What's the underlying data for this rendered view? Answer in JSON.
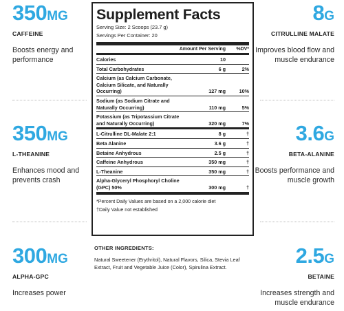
{
  "callouts": {
    "caffeine": {
      "value": "350",
      "unit": "MG",
      "name": "CAFFEINE",
      "desc": "Boosts energy and performance"
    },
    "theanine": {
      "value": "350",
      "unit": "MG",
      "name": "L-THEANINE",
      "desc": "Enhances mood and prevents crash"
    },
    "alphagpc": {
      "value": "300",
      "unit": "MG",
      "name": "ALPHA-GPC",
      "desc": "Increases power"
    },
    "citrulline": {
      "value": "8",
      "unit": "G",
      "name": "CITRULLINE MALATE",
      "desc": "Improves blood flow and muscle endurance"
    },
    "betaalanine": {
      "value": "3.6",
      "unit": "G",
      "name": "BETA-ALANINE",
      "desc": "Boosts performance and muscle growth"
    },
    "betaine": {
      "value": "2.5",
      "unit": "G",
      "name": "BETAINE",
      "desc": "Increases strength and muscle endurance"
    }
  },
  "facts": {
    "title": "Supplement Facts",
    "serving_size": "Serving Size: 2 Scoops (23.7 g)",
    "servings_per_container": "Servings Per Container: 20",
    "col_amount": "Amount Per Serving",
    "col_dv": "%DV*",
    "rows": [
      {
        "name": "Calories",
        "amount": "10",
        "dv": ""
      },
      {
        "name": "Total Carbohydrates",
        "amount": "6 g",
        "dv": "2%"
      },
      {
        "name": "Calcium (as Calcium Carbonate, Calcium Silicate, and Naturally Occurring)",
        "amount": "127 mg",
        "dv": "10%"
      },
      {
        "name": "Sodium (as Sodium Citrate and Naturally Occurring)",
        "amount": "110 mg",
        "dv": "5%"
      },
      {
        "name": "Potassium (as Tripotassium Citrate and Naturally Occurring)",
        "amount": "320 mg",
        "dv": "7%"
      },
      {
        "name": "L-Citrulline DL-Malate 2:1",
        "amount": "8 g",
        "dv": "†"
      },
      {
        "name": "Beta Alanine",
        "amount": "3.6 g",
        "dv": "†"
      },
      {
        "name": "Betaine Anhydrous",
        "amount": "2.5 g",
        "dv": "†"
      },
      {
        "name": "Caffeine Anhydrous",
        "amount": "350 mg",
        "dv": "†"
      },
      {
        "name": "L-Theanine",
        "amount": "350 mg",
        "dv": "†"
      },
      {
        "name": "Alpha-Glyceryl Phosphoryl Choline (GPC) 50%",
        "amount": "300 mg",
        "dv": "†"
      }
    ],
    "footnote1": "*Percent Daily Values are based on a 2,000 calorie diet",
    "footnote2": "†Daily Value not established"
  },
  "other": {
    "heading": "OTHER INGREDIENTS:",
    "text": "Natural Sweetener (Erythritol), Natural Flavors, Silica, Stevia Leaf Extract, Fruit and Vegetable Juice (Color), Spirulina Extract."
  },
  "colors": {
    "accent": "#2fa8e1",
    "text": "#1e1e1e"
  }
}
